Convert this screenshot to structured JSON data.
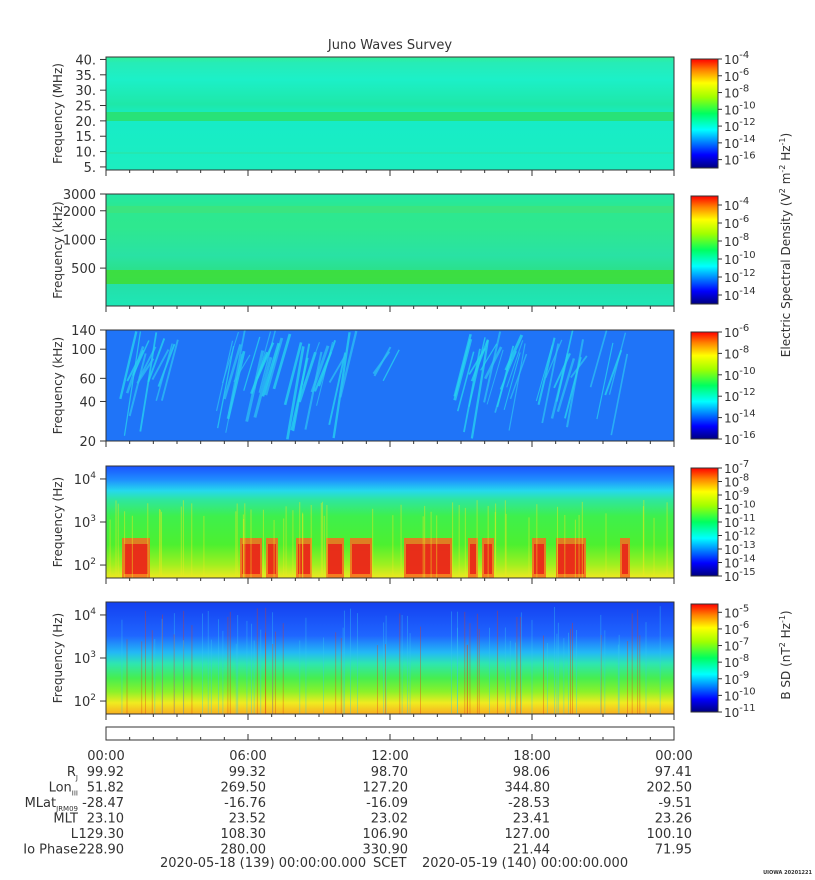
{
  "chart_data": {
    "type": "heatmap",
    "title": "Juno Waves Survey",
    "panels": [
      {
        "ylabel": "Frequency (MHz)",
        "yscale": "linear",
        "ylim": [
          4,
          40.8
        ],
        "yticks": [
          {
            "value": 5,
            "label": "5."
          },
          {
            "value": 10,
            "label": "10."
          },
          {
            "value": 15,
            "label": "15."
          },
          {
            "value": 20,
            "label": "20."
          },
          {
            "value": 25,
            "label": "25."
          },
          {
            "value": 30,
            "label": "30."
          },
          {
            "value": 35,
            "label": "35."
          },
          {
            "value": 40,
            "label": "40."
          }
        ],
        "colorbar": {
          "range_exp": [
            -17,
            -4
          ],
          "tick_exps": [
            -4,
            -6,
            -8,
            -10,
            -12,
            -14,
            -16
          ]
        }
      },
      {
        "ylabel": "Frequency (kHz)",
        "yscale": "log",
        "ylim": [
          200,
          3000
        ],
        "yticks": [
          {
            "value": 500,
            "label": "500"
          },
          {
            "value": 1000,
            "label": "1000"
          },
          {
            "value": 2000,
            "label": "2000"
          },
          {
            "value": 3000,
            "label": "3000"
          }
        ],
        "colorbar": {
          "range_exp": [
            -15,
            -3
          ],
          "tick_exps": [
            -4,
            -6,
            -8,
            -10,
            -12,
            -14
          ]
        }
      },
      {
        "ylabel": "Frequency (kHz)",
        "yscale": "log",
        "ylim": [
          20,
          140
        ],
        "yticks": [
          {
            "value": 20,
            "label": "20"
          },
          {
            "value": 40,
            "label": "40"
          },
          {
            "value": 60,
            "label": "60"
          },
          {
            "value": 100,
            "label": "100"
          },
          {
            "value": 140,
            "label": "140"
          }
        ],
        "colorbar": {
          "range_exp": [
            -16,
            -6
          ],
          "tick_exps": [
            -6,
            -8,
            -10,
            -12,
            -14,
            -16
          ]
        }
      },
      {
        "ylabel": "Frequency (Hz)",
        "yscale": "log",
        "ylim": [
          50,
          20000
        ],
        "yticks": [
          {
            "value": 100,
            "label": "10",
            "sup": "2"
          },
          {
            "value": 1000,
            "label": "10",
            "sup": "3"
          },
          {
            "value": 10000,
            "label": "10",
            "sup": "4"
          }
        ],
        "colorbar": {
          "range_exp": [
            -15,
            -7
          ],
          "tick_exps": [
            -7,
            -8,
            -9,
            -10,
            -11,
            -12,
            -13,
            -14,
            -15
          ]
        }
      },
      {
        "ylabel": "Frequency (Hz)",
        "yscale": "log",
        "ylim": [
          50,
          20000
        ],
        "yticks": [
          {
            "value": 100,
            "label": "10",
            "sup": "2"
          },
          {
            "value": 1000,
            "label": "10",
            "sup": "3"
          },
          {
            "value": 10000,
            "label": "10",
            "sup": "4"
          }
        ],
        "colorbar": {
          "range_exp": [
            -11,
            -4.5
          ],
          "tick_exps": [
            -5,
            -6,
            -7,
            -8,
            -9,
            -10,
            -11
          ]
        }
      }
    ],
    "colorbar_labels": [
      {
        "text": "Electric Spectral Density (V",
        "sup": "2",
        "mid": " m",
        "sup2": "-2",
        "mid2": " Hz",
        "sup3": "-1",
        "end": ")"
      },
      {
        "text": "B SD (nT",
        "sup": "2",
        "mid": " Hz",
        "sup3": "-1",
        "end": ")"
      }
    ],
    "x_axis": {
      "ticks": [
        "00:00",
        "06:00",
        "12:00",
        "18:00",
        "00:00"
      ]
    },
    "ephemeris": [
      {
        "label": "R",
        "sub": "J",
        "values": [
          "99.92",
          "99.32",
          "98.70",
          "98.06",
          "97.41"
        ]
      },
      {
        "label": "Lon",
        "sub": "III",
        "values": [
          "51.82",
          "269.50",
          "127.20",
          "344.80",
          "202.50"
        ]
      },
      {
        "label": "MLat",
        "sub": "JRM09",
        "values": [
          "-28.47",
          "-16.76",
          "-16.09",
          "-28.53",
          "-9.51"
        ]
      },
      {
        "label": "MLT",
        "sub": "",
        "values": [
          "23.10",
          "23.52",
          "23.02",
          "23.41",
          "23.26"
        ]
      },
      {
        "label": "L",
        "sub": "",
        "values": [
          "129.30",
          "108.30",
          "106.90",
          "127.00",
          "100.10"
        ]
      },
      {
        "label": "Io Phase",
        "sub": "",
        "values": [
          "228.90",
          "280.00",
          "330.90",
          "21.44",
          "71.95"
        ]
      }
    ],
    "footer": {
      "start": "2020-05-18 (139) 00:00:00.000",
      "center": "SCET",
      "end": "2020-05-19 (140) 00:00:00.000"
    },
    "credit": "UIOWA 20201221"
  }
}
